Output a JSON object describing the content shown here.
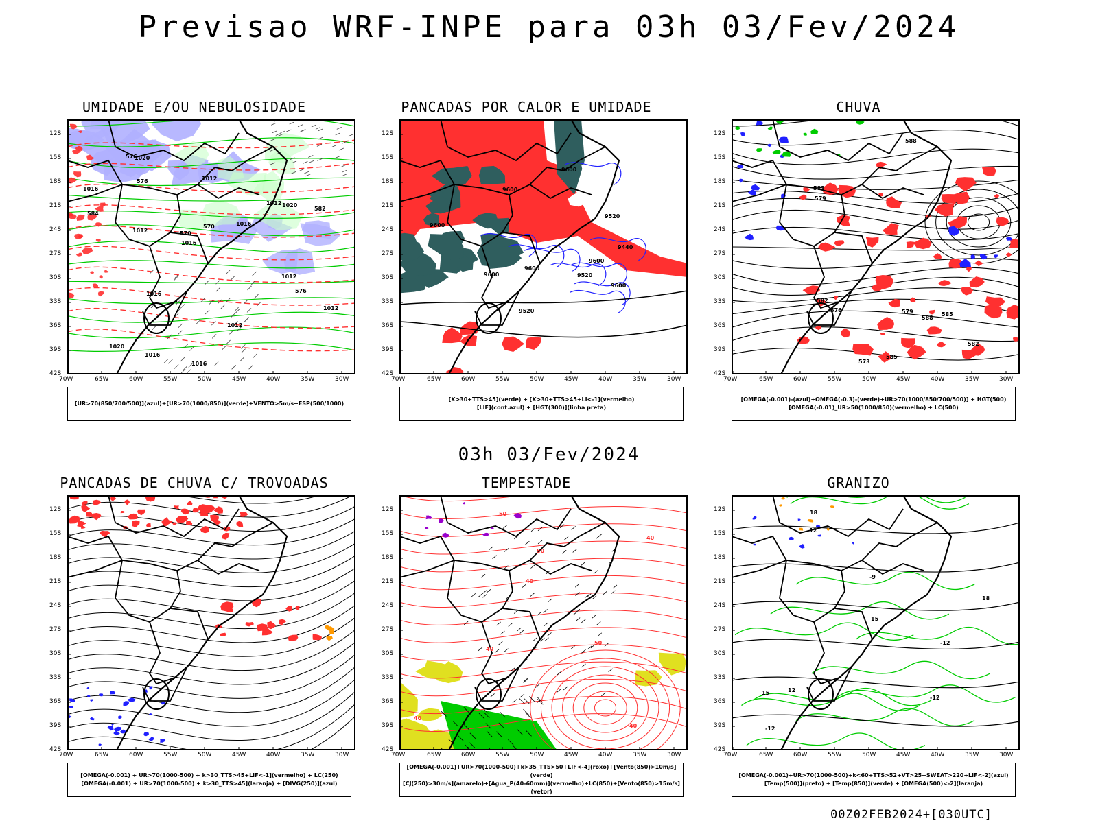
{
  "header": {
    "title": "Previsao WRF-INPE  para 03h 03/Fev/2024"
  },
  "mid_label": "03h 03/Fev/2024",
  "footer": "00Z02FEB2024+[030UTC]",
  "axes": {
    "lat_ticks": [
      "12S",
      "15S",
      "18S",
      "21S",
      "24S",
      "27S",
      "30S",
      "33S",
      "36S",
      "39S",
      "42S"
    ],
    "lon_ticks": [
      "70W",
      "65W",
      "60W",
      "55W",
      "50W",
      "45W",
      "40W",
      "35W",
      "30W"
    ]
  },
  "colors": {
    "blue_fill": "#b0b0ff",
    "green": "#00cc00",
    "red": "#ff3030",
    "teal": "#2f5e5e",
    "yellow": "#e0e020",
    "orange": "#ff9900",
    "purple": "#9900cc",
    "blue": "#2020ff"
  },
  "panels": [
    {
      "title": "UMIDADE E/OU NEBULOSIDADE",
      "legend": [
        "[UR>70(850/700/500)](azul)+[UR>70(1000/850)](verde)+VENTO>5m/s+ESP(500/1000)"
      ],
      "labels": [
        "1012",
        "1012",
        "1012",
        "1016",
        "1016",
        "1016",
        "1016",
        "1016",
        "1016",
        "1012",
        "1020",
        "1012",
        "1012",
        "1020",
        "1020",
        "576",
        "576",
        "570",
        "582",
        "584",
        "576",
        "570"
      ]
    },
    {
      "title": "PANCADAS POR CALOR E UMIDADE",
      "legend": [
        "[K>30+TTS>45](verde) + [K>30+TTS>45+LI<-1](vermelho)",
        "[LIF](cont.azul) + [HGT(300)](linha preta)"
      ],
      "labels": [
        "9600",
        "9600",
        "9600",
        "9600",
        "9600",
        "9600",
        "9520",
        "9520",
        "9520",
        "9440",
        "9600"
      ]
    },
    {
      "title": "CHUVA",
      "legend": [
        "[OMEGA(-0.001)-(azul)+OMEGA(-0.3)-(verde)+UR>70(1000/850/700/500)] + HGT(500)",
        "[OMEGA(-0.01)_UR>50(1000/850)(vermelho) + LC(500)"
      ],
      "labels": [
        "585",
        "585",
        "588",
        "588",
        "582",
        "582",
        "579",
        "576",
        "573",
        "579",
        "582"
      ]
    },
    {
      "title": "PANCADAS DE CHUVA C/ TROVOADAS",
      "legend": [
        "[OMEGA(-0.001) + UR>70(1000-500) + k>30_TTS>45+LIF<-1](vermelho) + LC(250)",
        "[OMEGA(-0.001) + UR>70(1000-500) + k>30_TTS>45](laranja) + [DIVG(250)](azul)"
      ],
      "labels": []
    },
    {
      "title": "TEMPESTADE",
      "legend": [
        "[OMEGA(-0.001)+UR>70(1000-500)+k>35_TTS>50+LIF<-4](roxo)+[Vento(850)>10m/s](verde)",
        "[CJ(250)>30m/s](amarelo)+[Agua_P(40-60mm)](vermelho)+LC(850)+[Vento(850)>15m/s](vetor)"
      ],
      "labels": [
        "40",
        "40",
        "50",
        "40",
        "40",
        "50",
        "50",
        "40"
      ]
    },
    {
      "title": "GRANIZO",
      "legend": [
        "[OMEGA(-0.001)+UR>70(1000-500)+k<60+TTS>52+VT>25+SWEAT>220+LIF<-2](azul)",
        "[Temp(500)](preto) + [Temp(850)](verde) + [OMEGA(500)<-2](laranja)"
      ],
      "labels": [
        "-12",
        "-12",
        "-12",
        "-12",
        "15",
        "15",
        "18",
        "18",
        "-9",
        "12"
      ]
    }
  ]
}
